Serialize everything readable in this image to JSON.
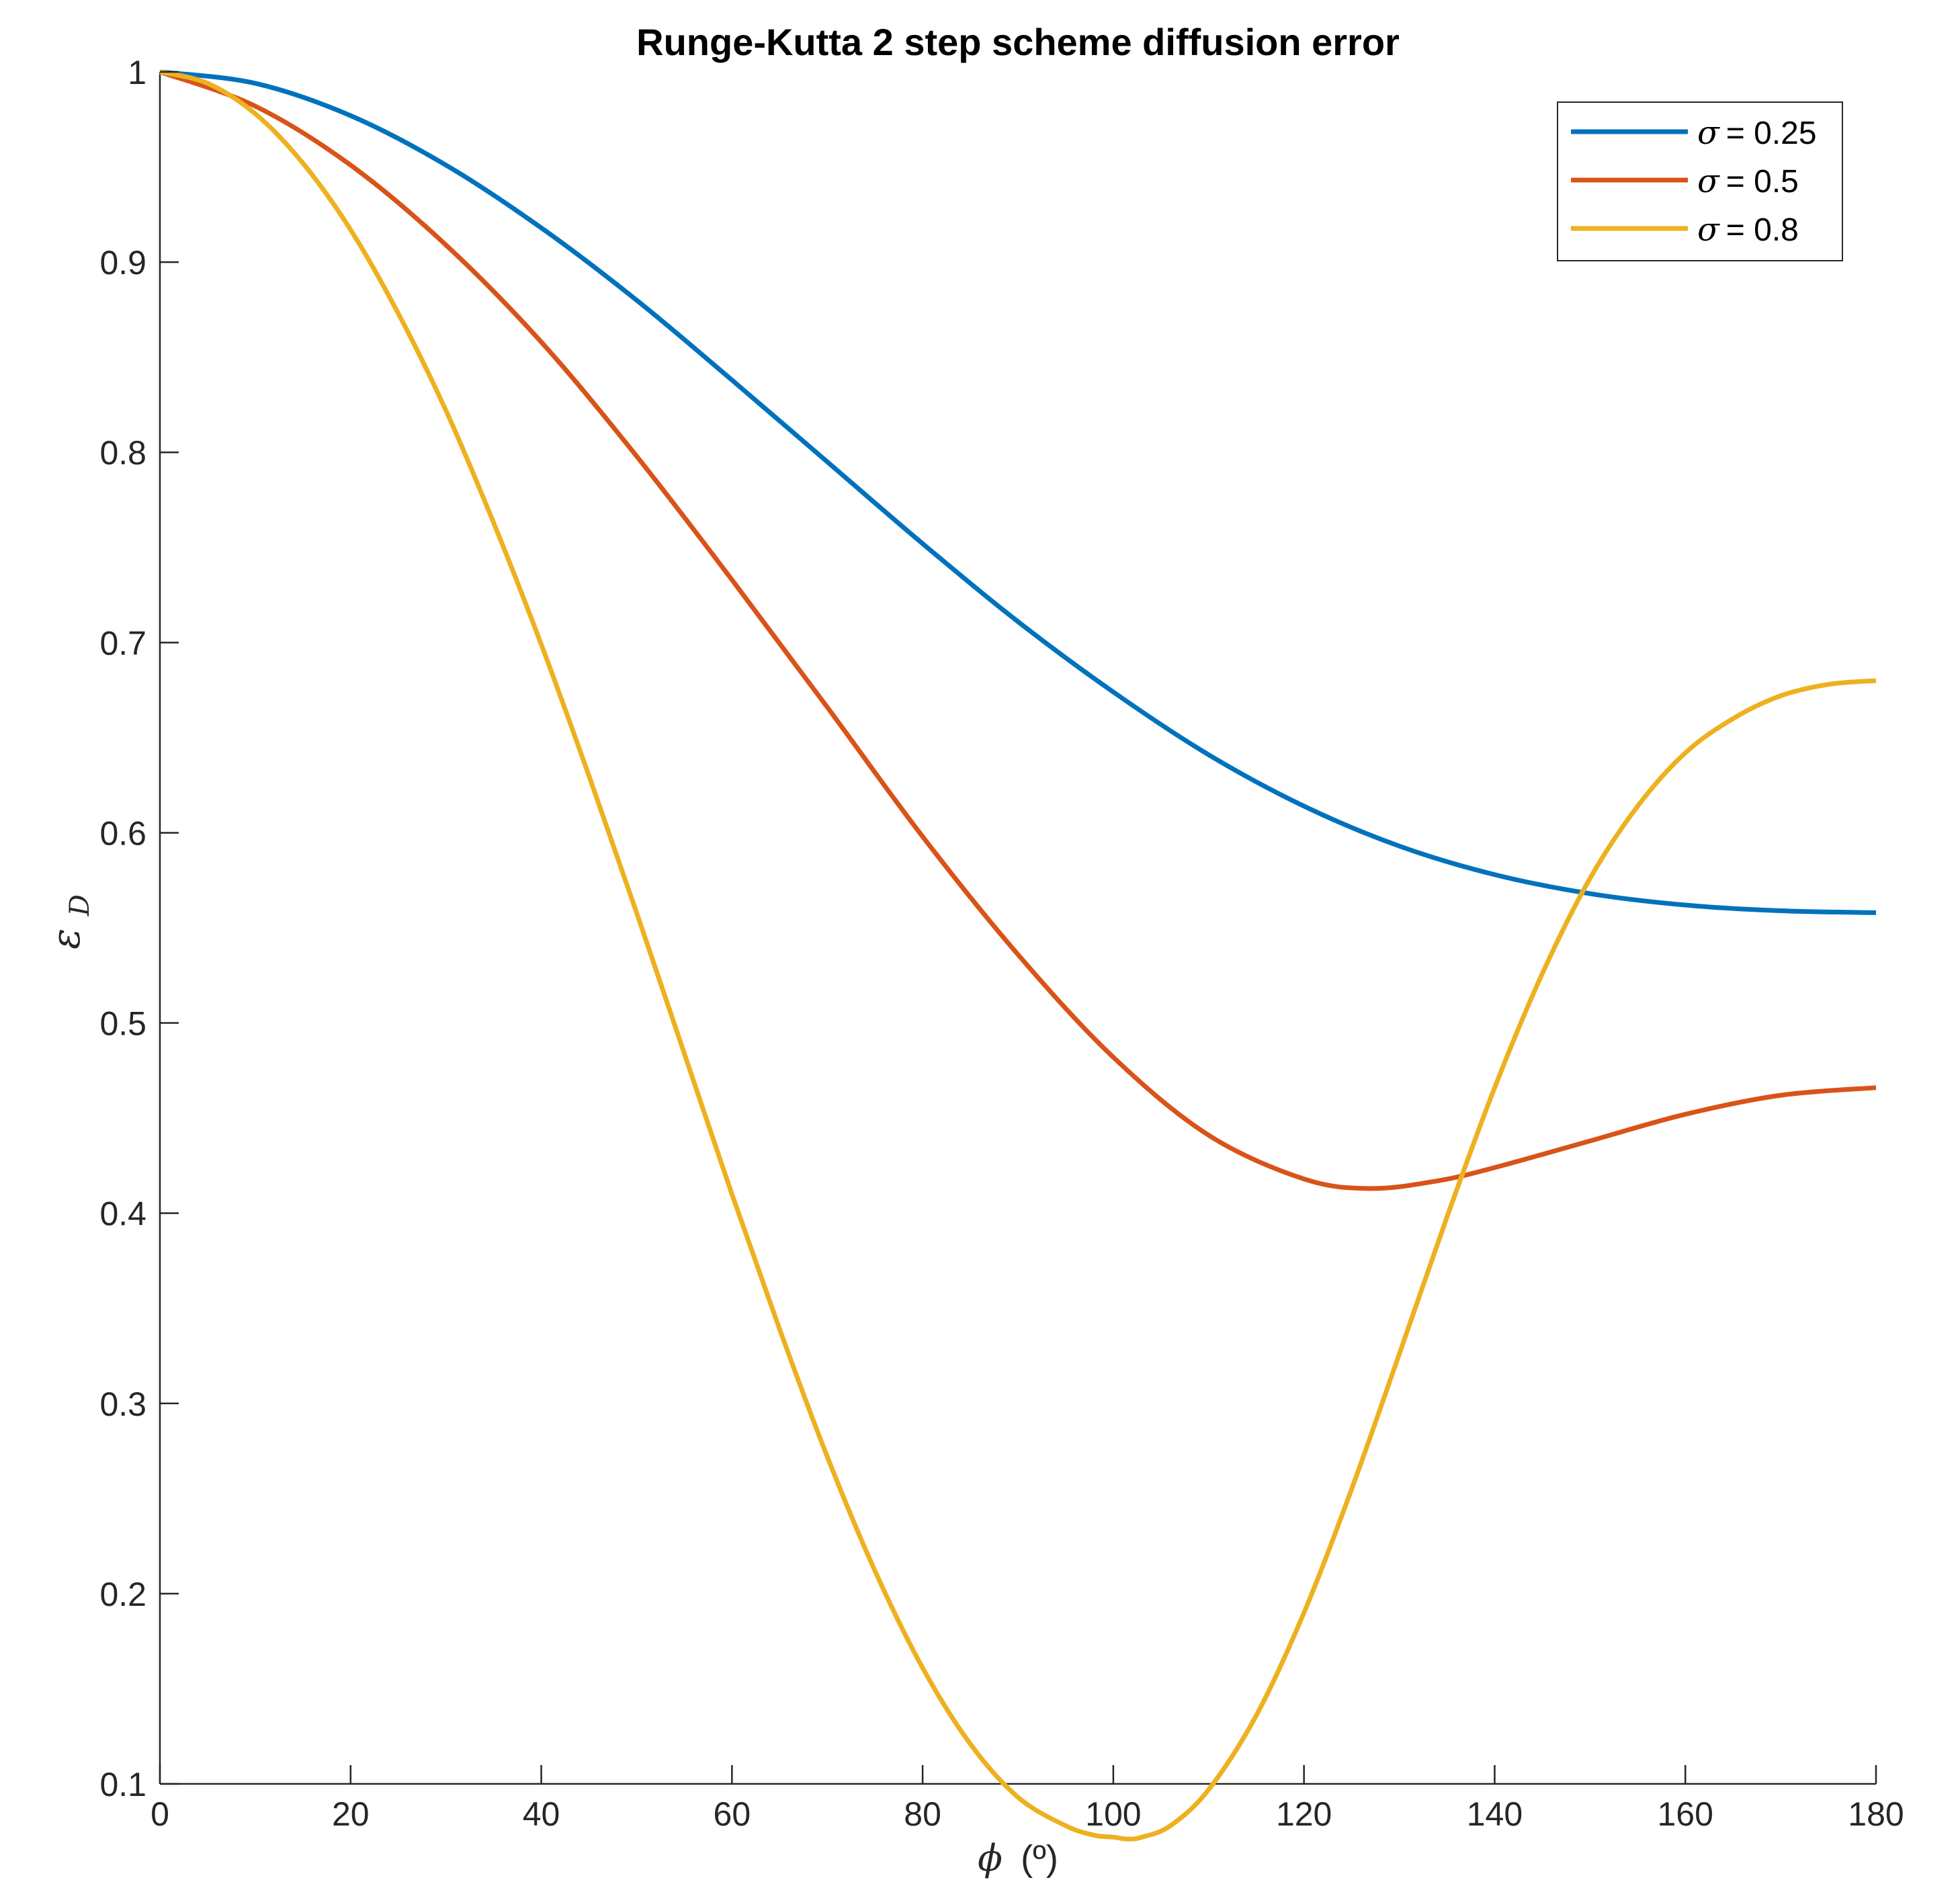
{
  "chart_data": {
    "type": "line",
    "title": "Runge-Kutta 2 step scheme diffusion error",
    "xlabel": {
      "symbol": "ϕ",
      "unit": "(º)"
    },
    "ylabel": {
      "symbol": "ε",
      "subscript": "D"
    },
    "xlim": [
      0,
      180
    ],
    "ylim": [
      0.1,
      1
    ],
    "xticks": [
      0,
      20,
      40,
      60,
      80,
      100,
      120,
      140,
      160,
      180
    ],
    "yticks": [
      0.1,
      0.2,
      0.3,
      0.4,
      0.5,
      0.6,
      0.7,
      0.8,
      0.9,
      1
    ],
    "grid": false,
    "legend_position": "top-right",
    "series": [
      {
        "name": "σ = 0.25",
        "legend_symbol": "σ",
        "legend_value": "= 0.25",
        "color": "#0072bd",
        "x": [
          0,
          10,
          20,
          30,
          40,
          50,
          60,
          70,
          80,
          90,
          100,
          110,
          120,
          130,
          140,
          150,
          160,
          170,
          180
        ],
        "y": [
          1.0,
          0.994,
          0.977,
          0.951,
          0.918,
          0.88,
          0.838,
          0.795,
          0.752,
          0.711,
          0.674,
          0.641,
          0.614,
          0.593,
          0.578,
          0.568,
          0.562,
          0.559,
          0.558
        ]
      },
      {
        "name": "σ = 0.5",
        "legend_symbol": "σ",
        "legend_value": "= 0.5",
        "color": "#d95319",
        "x": [
          0,
          10,
          20,
          30,
          40,
          50,
          60,
          70,
          80,
          90,
          100,
          110,
          120,
          127,
          134,
          140,
          150,
          160,
          170,
          180
        ],
        "y": [
          1.0,
          0.982,
          0.951,
          0.909,
          0.858,
          0.798,
          0.733,
          0.666,
          0.598,
          0.536,
          0.482,
          0.441,
          0.418,
          0.413,
          0.417,
          0.424,
          0.438,
          0.452,
          0.462,
          0.466
        ]
      },
      {
        "name": "σ = 0.8",
        "legend_symbol": "σ",
        "legend_value": "= 0.8",
        "color": "#edb120",
        "x": [
          0,
          5,
          10,
          15,
          20,
          25,
          30,
          35,
          40,
          45,
          50,
          55,
          60,
          65,
          70,
          75,
          80,
          85,
          90,
          95,
          98,
          100,
          101.5,
          103,
          106,
          110,
          115,
          120,
          125,
          130,
          135,
          140,
          145,
          150,
          155,
          160,
          165,
          170,
          175,
          180
        ],
        "y": [
          1.0,
          0.994,
          0.978,
          0.952,
          0.917,
          0.873,
          0.822,
          0.763,
          0.699,
          0.63,
          0.558,
          0.484,
          0.41,
          0.339,
          0.272,
          0.212,
          0.161,
          0.121,
          0.093,
          0.078,
          0.073,
          0.072,
          0.071,
          0.072,
          0.078,
          0.097,
          0.136,
          0.19,
          0.255,
          0.326,
          0.398,
          0.466,
          0.526,
          0.576,
          0.614,
          0.642,
          0.66,
          0.672,
          0.678,
          0.68
        ]
      }
    ]
  }
}
